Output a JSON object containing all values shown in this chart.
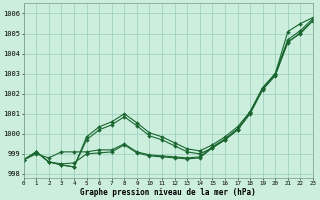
{
  "title": "Graphe pression niveau de la mer (hPa)",
  "bg_color": "#cceedd",
  "grid_color": "#99ccbb",
  "line_color": "#1a6630",
  "xlim": [
    0,
    23
  ],
  "ylim": [
    997.8,
    1006.5
  ],
  "yticks": [
    998,
    999,
    1000,
    1001,
    1002,
    1003,
    1004,
    1005,
    1006
  ],
  "xticks": [
    0,
    1,
    2,
    3,
    4,
    5,
    6,
    7,
    8,
    9,
    10,
    11,
    12,
    13,
    14,
    15,
    16,
    17,
    18,
    19,
    20,
    21,
    22,
    23
  ],
  "series": [
    [
      998.7,
      999.0,
      998.8,
      999.1,
      999.1,
      999.1,
      999.2,
      999.2,
      999.5,
      999.1,
      998.95,
      998.9,
      998.85,
      998.8,
      998.85,
      999.35,
      999.75,
      1000.25,
      1001.1,
      1002.3,
      1003.0,
      1005.1,
      1005.5,
      1005.8
    ],
    [
      998.7,
      999.1,
      998.6,
      998.5,
      998.55,
      999.0,
      999.05,
      999.1,
      999.45,
      999.05,
      998.9,
      998.85,
      998.8,
      998.75,
      998.8,
      999.3,
      999.7,
      1000.2,
      1001.05,
      1002.25,
      1002.95,
      1004.55,
      1005.05,
      1005.65
    ],
    [
      998.7,
      999.1,
      998.6,
      998.45,
      998.35,
      999.85,
      1000.35,
      1000.6,
      1001.0,
      1000.55,
      1000.05,
      999.85,
      999.55,
      999.25,
      999.15,
      999.45,
      999.85,
      1000.35,
      1001.1,
      1002.3,
      1003.0,
      1004.7,
      1005.15,
      1005.75
    ],
    [
      998.7,
      999.1,
      998.6,
      998.45,
      998.35,
      999.7,
      1000.2,
      1000.45,
      1000.85,
      1000.4,
      999.9,
      999.7,
      999.4,
      999.1,
      999.0,
      999.3,
      999.7,
      1000.2,
      1001.0,
      1002.2,
      1002.9,
      1004.6,
      1005.0,
      1005.65
    ]
  ],
  "marker": "D",
  "markersize": 2.0,
  "linewidth": 0.8
}
